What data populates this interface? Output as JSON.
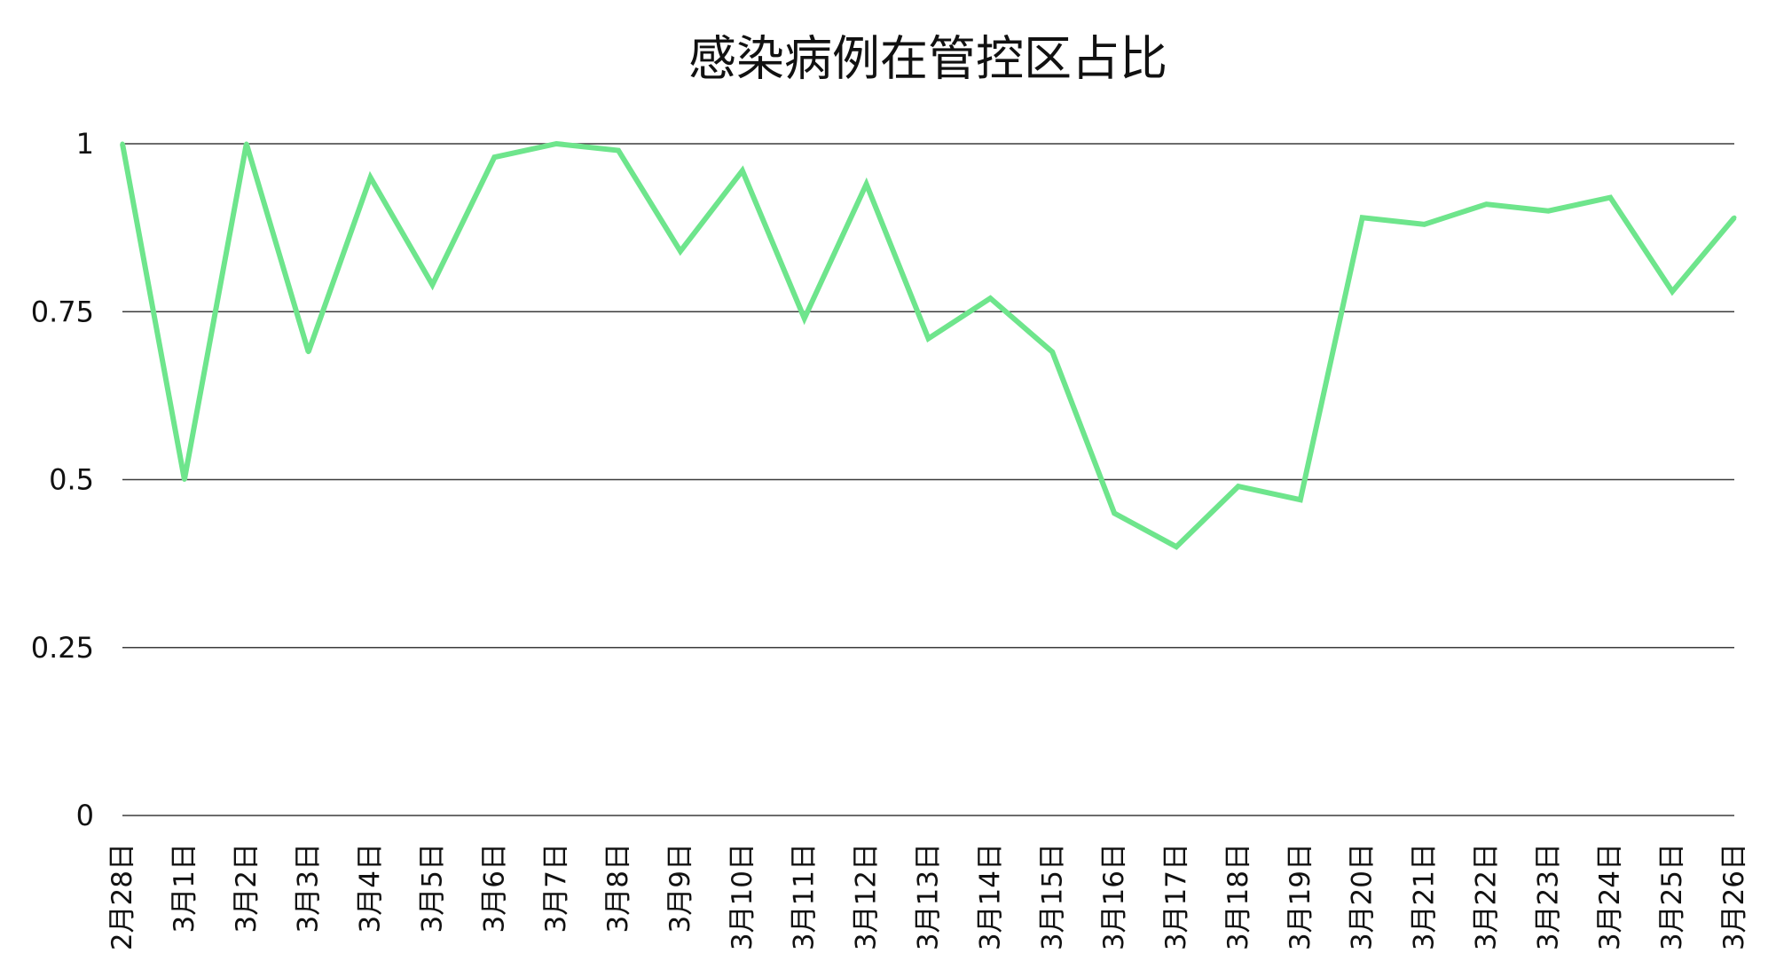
{
  "chart_data": {
    "type": "line",
    "title": "感染病例在管控区占比",
    "xlabel": "",
    "ylabel": "",
    "categories": [
      "2月28日",
      "3月1日",
      "3月2日",
      "3月3日",
      "3月4日",
      "3月5日",
      "3月6日",
      "3月7日",
      "3月8日",
      "3月9日",
      "3月10日",
      "3月11日",
      "3月12日",
      "3月13日",
      "3月14日",
      "3月15日",
      "3月16日",
      "3月17日",
      "3月18日",
      "3月19日",
      "3月20日",
      "3月21日",
      "3月22日",
      "3月23日",
      "3月24日",
      "3月25日",
      "3月26日"
    ],
    "series": [
      {
        "values": [
          1.0,
          0.5,
          1.0,
          0.69,
          0.95,
          0.79,
          0.98,
          1.0,
          0.99,
          0.84,
          0.96,
          0.74,
          0.94,
          0.71,
          0.77,
          0.69,
          0.45,
          0.4,
          0.49,
          0.47,
          0.89,
          0.88,
          0.91,
          0.9,
          0.92,
          0.78,
          0.89
        ],
        "color": "#6ee58c"
      }
    ],
    "ylim": [
      0,
      1
    ],
    "yticks": [
      "0",
      "0.25",
      "0.5",
      "0.75",
      "1"
    ],
    "ytick_values": [
      0,
      0.25,
      0.5,
      0.75,
      1
    ],
    "grid": true,
    "legend": "none"
  }
}
